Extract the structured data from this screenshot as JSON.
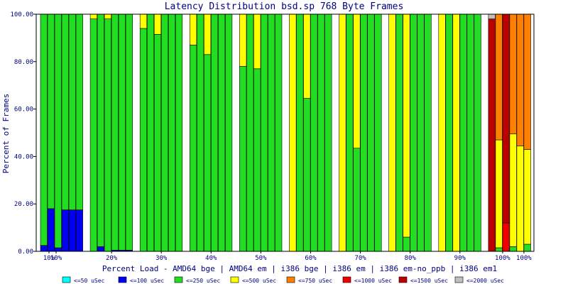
{
  "chart_data": {
    "type": "bar",
    "stacked": true,
    "title": "Latency Distribution bsd.sp 768 Byte Frames",
    "xlabel": "Percent Load - AMD64 bge | AMD64 em | i386 bge | i386 em | i386 em-no_ppb | i386 em1",
    "ylabel": "Percent of Frames",
    "ylim": [
      0,
      100
    ],
    "yticks": [
      "0.00",
      "20.00",
      "40.00",
      "60.00",
      "80.00",
      "100.00"
    ],
    "grid": false,
    "legend_position": "bottom",
    "load_levels": [
      "10%",
      "20%",
      "30%",
      "40%",
      "50%",
      "60%",
      "70%",
      "80%",
      "90%",
      "100%"
    ],
    "tick_labels": [
      "10%",
      "10%",
      "20%",
      "30%",
      "40%",
      "50%",
      "60%",
      "70%",
      "80%",
      "90%",
      "100%",
      "100%"
    ],
    "legend": [
      {
        "label": "<=50 uSec",
        "color": "#00ffff"
      },
      {
        "label": "<=100 uSec",
        "color": "#0000ee"
      },
      {
        "label": "<=250 uSec",
        "color": "#22dd22"
      },
      {
        "label": "<=500 uSec",
        "color": "#ffff00"
      },
      {
        "label": "<=750 uSec",
        "color": "#ff8000"
      },
      {
        "label": "<=1000 uSec",
        "color": "#ee0000"
      },
      {
        "label": "<=1500 uSec",
        "color": "#bb0000"
      },
      {
        "label": "<=2000 uSec",
        "color": "#c0c0c0"
      }
    ],
    "groups": [
      {
        "load": "10%",
        "bars": [
          [
            0,
            2.5,
            97.5,
            0,
            0,
            0,
            0,
            0
          ],
          [
            0,
            18,
            82,
            0,
            0,
            0,
            0,
            0
          ],
          [
            0,
            1.5,
            98.5,
            0,
            0,
            0,
            0,
            0
          ],
          [
            0,
            17.5,
            82.5,
            0,
            0,
            0,
            0,
            0
          ],
          [
            0,
            17.5,
            82.5,
            0,
            0,
            0,
            0,
            0
          ],
          [
            0,
            17.5,
            82.5,
            0,
            0,
            0,
            0,
            0
          ]
        ]
      },
      {
        "load": "20%",
        "bars": [
          [
            0,
            0,
            98,
            2,
            0,
            0,
            0,
            0
          ],
          [
            0,
            2,
            98,
            0,
            0,
            0,
            0,
            0
          ],
          [
            0,
            0,
            98,
            2,
            0,
            0,
            0,
            0
          ],
          [
            0,
            0.5,
            99.5,
            0,
            0,
            0,
            0,
            0
          ],
          [
            0,
            0.5,
            99.5,
            0,
            0,
            0,
            0,
            0
          ],
          [
            0,
            0.5,
            99.5,
            0,
            0,
            0,
            0,
            0
          ]
        ]
      },
      {
        "load": "30%",
        "bars": [
          [
            0,
            0,
            94,
            6,
            0,
            0,
            0,
            0
          ],
          [
            0,
            0,
            100,
            0,
            0,
            0,
            0,
            0
          ],
          [
            0,
            0,
            91.5,
            8.5,
            0,
            0,
            0,
            0
          ],
          [
            0,
            0,
            100,
            0,
            0,
            0,
            0,
            0
          ],
          [
            0,
            0,
            100,
            0,
            0,
            0,
            0,
            0
          ],
          [
            0,
            0,
            100,
            0,
            0,
            0,
            0,
            0
          ]
        ]
      },
      {
        "load": "40%",
        "bars": [
          [
            0,
            0,
            87,
            13,
            0,
            0,
            0,
            0
          ],
          [
            0,
            0,
            100,
            0,
            0,
            0,
            0,
            0
          ],
          [
            0,
            0,
            83,
            17,
            0,
            0,
            0,
            0
          ],
          [
            0,
            0,
            100,
            0,
            0,
            0,
            0,
            0
          ],
          [
            0,
            0,
            100,
            0,
            0,
            0,
            0,
            0
          ],
          [
            0,
            0,
            100,
            0,
            0,
            0,
            0,
            0
          ]
        ]
      },
      {
        "load": "50%",
        "bars": [
          [
            0,
            0,
            78,
            22,
            0,
            0,
            0,
            0
          ],
          [
            0,
            0,
            100,
            0,
            0,
            0,
            0,
            0
          ],
          [
            0,
            0,
            77,
            23,
            0,
            0,
            0,
            0
          ],
          [
            0,
            0,
            100,
            0,
            0,
            0,
            0,
            0
          ],
          [
            0,
            0,
            100,
            0,
            0,
            0,
            0,
            0
          ],
          [
            0,
            0,
            100,
            0,
            0,
            0,
            0,
            0
          ]
        ]
      },
      {
        "load": "60%",
        "bars": [
          [
            0,
            0,
            0,
            100,
            0,
            0,
            0,
            0
          ],
          [
            0,
            0,
            100,
            0,
            0,
            0,
            0,
            0
          ],
          [
            0,
            0,
            64.5,
            35.5,
            0,
            0,
            0,
            0
          ],
          [
            0,
            0,
            100,
            0,
            0,
            0,
            0,
            0
          ],
          [
            0,
            0,
            100,
            0,
            0,
            0,
            0,
            0
          ],
          [
            0,
            0,
            100,
            0,
            0,
            0,
            0,
            0
          ]
        ]
      },
      {
        "load": "70%",
        "bars": [
          [
            0,
            0,
            0,
            100,
            0,
            0,
            0,
            0
          ],
          [
            0,
            0,
            100,
            0,
            0,
            0,
            0,
            0
          ],
          [
            0,
            0,
            43.5,
            56.5,
            0,
            0,
            0,
            0
          ],
          [
            0,
            0,
            100,
            0,
            0,
            0,
            0,
            0
          ],
          [
            0,
            0,
            100,
            0,
            0,
            0,
            0,
            0
          ],
          [
            0,
            0,
            100,
            0,
            0,
            0,
            0,
            0
          ]
        ]
      },
      {
        "load": "80%",
        "bars": [
          [
            0,
            0,
            0,
            100,
            0,
            0,
            0,
            0
          ],
          [
            0,
            0,
            100,
            0,
            0,
            0,
            0,
            0
          ],
          [
            0,
            0,
            6,
            94,
            0,
            0,
            0,
            0
          ],
          [
            0,
            0,
            100,
            0,
            0,
            0,
            0,
            0
          ],
          [
            0,
            0,
            100,
            0,
            0,
            0,
            0,
            0
          ],
          [
            0,
            0,
            100,
            0,
            0,
            0,
            0,
            0
          ]
        ]
      },
      {
        "load": "90%",
        "bars": [
          [
            0,
            0,
            0,
            100,
            0,
            0,
            0,
            0
          ],
          [
            0,
            0,
            100,
            0,
            0,
            0,
            0,
            0
          ],
          [
            0,
            0,
            0,
            100,
            0,
            0,
            0,
            0
          ],
          [
            0,
            0,
            100,
            0,
            0,
            0,
            0,
            0
          ],
          [
            0,
            0,
            100,
            0,
            0,
            0,
            0,
            0
          ],
          [
            0,
            0,
            100,
            0,
            0,
            0,
            0,
            0
          ]
        ]
      },
      {
        "load": "100%",
        "bars": [
          [
            0,
            0,
            0,
            0,
            0,
            0,
            98,
            2
          ],
          [
            0,
            0,
            1.5,
            45.5,
            53,
            0,
            0,
            0
          ],
          [
            0,
            0,
            0,
            0,
            0,
            12,
            88,
            0
          ],
          [
            0,
            0,
            2,
            47.5,
            50.5,
            0,
            0,
            0
          ],
          [
            0,
            0,
            0,
            44.5,
            55.5,
            0,
            0,
            0
          ],
          [
            0,
            0,
            3,
            40,
            57,
            0,
            0,
            0
          ]
        ]
      }
    ]
  }
}
